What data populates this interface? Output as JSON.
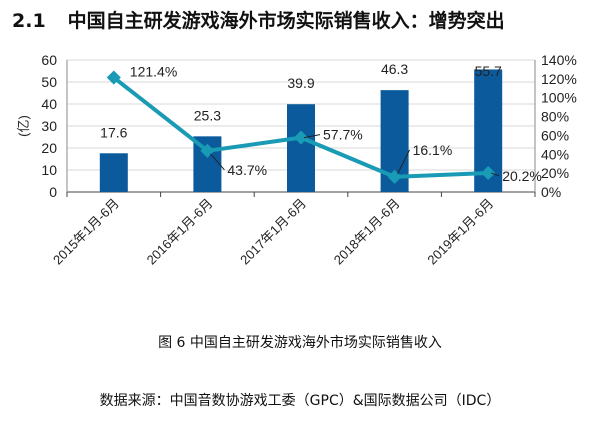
{
  "heading": {
    "number": "2.1",
    "title": "中国自主研发游戏海外市场实际销售收入：增势突出"
  },
  "caption": "图 6  中国自主研发游戏海外市场实际销售收入",
  "source": "数据来源：中国音数协游戏工委（GPC）&国际数据公司（IDC）",
  "chart_data": {
    "type": "bar",
    "categories": [
      "2015年1月-6月",
      "2016年1月-6月",
      "2017年1月-6月",
      "2018年1月-6月",
      "2019年1月-6月"
    ],
    "ylabel": "(亿)",
    "ylim": [
      0,
      60
    ],
    "yticks": [
      0,
      10,
      20,
      30,
      40,
      50,
      60
    ],
    "y2lim": [
      0,
      140
    ],
    "y2ticks": [
      "0%",
      "20%",
      "40%",
      "60%",
      "80%",
      "100%",
      "120%",
      "140%"
    ],
    "grid": true,
    "series": [
      {
        "type": "bar",
        "values": [
          17.6,
          25.3,
          39.9,
          46.3,
          55.7
        ],
        "labels": [
          "17.6",
          "25.3",
          "39.9",
          "46.3",
          "55.7"
        ],
        "color": "#0a5a9c"
      },
      {
        "type": "line",
        "axis": "right",
        "values": [
          121.4,
          43.7,
          57.7,
          16.1,
          20.2
        ],
        "labels": [
          "121.4%",
          "43.7%",
          "57.7%",
          "16.1%",
          "20.2%"
        ],
        "color": "#1a9bb5",
        "marker": "diamond"
      }
    ]
  }
}
